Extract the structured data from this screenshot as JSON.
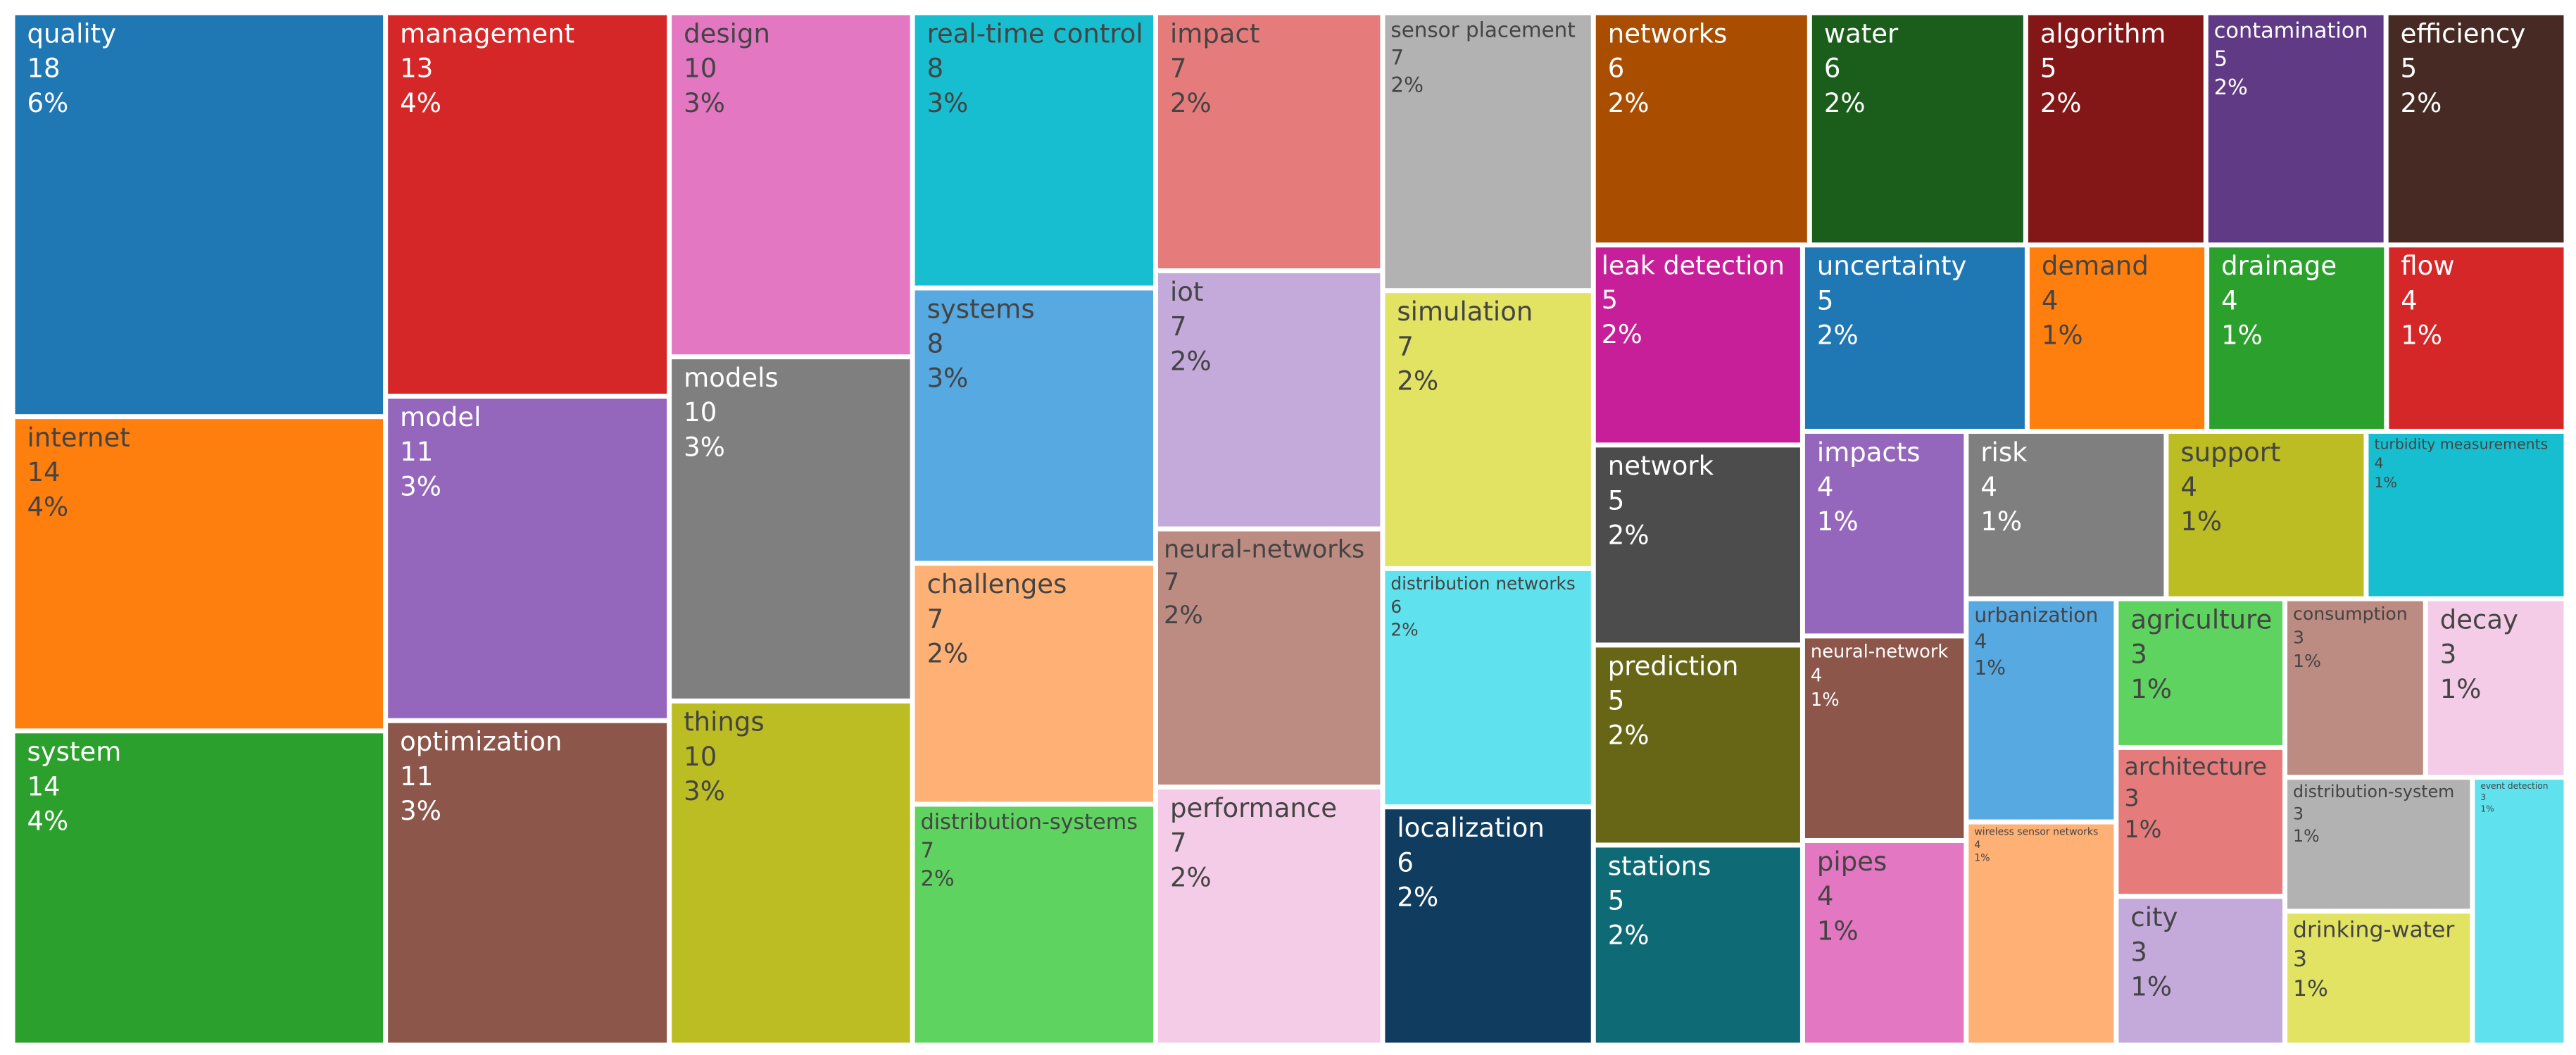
{
  "chart_data": {
    "type": "treemap",
    "names": [
      "quality",
      "internet",
      "system",
      "management",
      "model",
      "optimization",
      "design",
      "models",
      "things",
      "real-time control",
      "systems",
      "challenges",
      "distribution-systems",
      "impact",
      "iot",
      "neural-networks",
      "performance",
      "sensor placement",
      "simulation",
      "distribution networks",
      "localization",
      "networks",
      "water",
      "algorithm",
      "contamination",
      "efficiency",
      "leak detection",
      "network",
      "prediction",
      "stations",
      "uncertainty",
      "demand",
      "drainage",
      "flow",
      "impacts",
      "neural-network",
      "pipes",
      "risk",
      "support",
      "turbidity measurements",
      "urbanization",
      "wireless sensor networks",
      "agriculture",
      "architecture",
      "city",
      "consumption",
      "decay",
      "distribution-system",
      "drinking-water",
      "event detection"
    ],
    "values": [
      18,
      14,
      14,
      13,
      11,
      11,
      10,
      10,
      10,
      8,
      8,
      7,
      7,
      7,
      7,
      7,
      7,
      7,
      7,
      6,
      6,
      6,
      6,
      5,
      5,
      5,
      5,
      5,
      5,
      5,
      5,
      4,
      4,
      4,
      4,
      4,
      4,
      4,
      4,
      4,
      4,
      4,
      3,
      3,
      3,
      3,
      3,
      3,
      3,
      3
    ],
    "share_labels": [
      "6%",
      "4%",
      "4%",
      "4%",
      "3%",
      "3%",
      "3%",
      "3%",
      "3%",
      "3%",
      "3%",
      "2%",
      "2%",
      "2%",
      "2%",
      "2%",
      "2%",
      "2%",
      "2%",
      "2%",
      "2%",
      "2%",
      "2%",
      "2%",
      "2%",
      "2%",
      "2%",
      "2%",
      "2%",
      "2%",
      "2%",
      "1%",
      "1%",
      "1%",
      "1%",
      "1%",
      "1%",
      "1%",
      "1%",
      "1%",
      "1%",
      "1%",
      "1%",
      "1%",
      "1%",
      "1%",
      "1%",
      "1%",
      "1%",
      "1%"
    ],
    "colors": [
      "#1f77b4",
      "#ff7f0e",
      "#2ca02c",
      "#d62728",
      "#9467bd",
      "#8c564b",
      "#e377c2",
      "#7f7f7f",
      "#bcbd22",
      "#17becf",
      "#57a9e2",
      "#ffb074",
      "#5fd35f",
      "#e67b7b",
      "#c4aadb",
      "#bc8b81",
      "#f4cce8",
      "#b2b2b2",
      "#e2e362",
      "#5fe2ed",
      "#103d5f",
      "#a94e00",
      "#1b5e1b",
      "#831616",
      "#613a86",
      "#472a24",
      "#c71f9a",
      "#4c4c4c",
      "#676616",
      "#0e6a74",
      "#1f77b4",
      "#ff7f0e",
      "#2ca02c",
      "#d62728",
      "#9467bd",
      "#8c564b",
      "#e377c2",
      "#7f7f7f",
      "#bcbd22",
      "#17becf",
      "#57a9e2",
      "#ffb074",
      "#5fd35f",
      "#e67b7b",
      "#c4aadb",
      "#bc8b81",
      "#f4cce8",
      "#b2b2b2",
      "#e2e362",
      "#5fe2ed"
    ]
  }
}
